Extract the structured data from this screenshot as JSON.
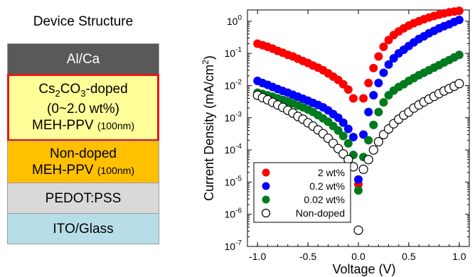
{
  "device_structure": {
    "title": "Device Structure",
    "layers": [
      {
        "text": "Al/Ca",
        "color": "#595959"
      },
      {
        "pre": "Cs",
        "sub": "2",
        "mid": "CO",
        "sub2": "3",
        "post": "-doped",
        "line2": "(0~2.0 wt%)",
        "line3": "MEH-PPV",
        "line3_small": "(100nm)",
        "color": "#ffff99",
        "highlight": "#e5181e"
      },
      {
        "line1": "Non-doped",
        "line2": "MEH-PPV",
        "line2_small": "(100nm)",
        "color": "#ffc000"
      },
      {
        "text": "PEDOT:PSS",
        "color": "#d9d9d9"
      },
      {
        "text": "ITO/Glass",
        "color": "#b7dee8"
      }
    ]
  },
  "chart_data": {
    "type": "scatter",
    "title": "",
    "xlabel": "Voltage (V)",
    "ylabel_main": "Current Density (mA/cm",
    "ylabel_sup": "2",
    "ylabel_end": ")",
    "xlim": [
      -1.1,
      1.1
    ],
    "ylim_exp": [
      -7,
      0.35
    ],
    "yscale": "log",
    "x_ticks": [
      -1.0,
      -0.5,
      0.0,
      0.5,
      1.0
    ],
    "x_tick_labels": [
      "-1.0",
      "-0.5",
      "0.0",
      "0.5",
      "1.0"
    ],
    "y_tick_exponents": [
      -7,
      -6,
      -5,
      -4,
      -3,
      -2,
      -1,
      0
    ],
    "y_tick_base": "10",
    "legend_position": "bottom-left",
    "series": [
      {
        "name": "2 wt%",
        "color": "#ff0000",
        "filled": true,
        "x": [
          -1.0,
          -0.95,
          -0.9,
          -0.85,
          -0.8,
          -0.75,
          -0.7,
          -0.65,
          -0.6,
          -0.55,
          -0.5,
          -0.45,
          -0.4,
          -0.35,
          -0.3,
          -0.25,
          -0.2,
          -0.15,
          -0.1,
          -0.05,
          0.0,
          0.05,
          0.1,
          0.15,
          0.2,
          0.25,
          0.3,
          0.35,
          0.4,
          0.45,
          0.5,
          0.55,
          0.6,
          0.65,
          0.7,
          0.75,
          0.8,
          0.85,
          0.9,
          0.95,
          1.0
        ],
        "y": [
          0.2,
          0.18,
          0.16,
          0.14,
          0.12,
          0.105,
          0.09,
          0.08,
          0.068,
          0.058,
          0.05,
          0.042,
          0.036,
          0.03,
          0.024,
          0.019,
          0.015,
          0.011,
          0.0075,
          0.004,
          8.5e-06,
          0.004,
          0.012,
          0.035,
          0.08,
          0.16,
          0.26,
          0.37,
          0.48,
          0.6,
          0.73,
          0.87,
          1.0,
          1.15,
          1.3,
          1.45,
          1.6,
          1.75,
          1.9,
          2.0,
          2.1
        ]
      },
      {
        "name": "0.2 wt%",
        "color": "#0000ff",
        "filled": true,
        "x": [
          -1.0,
          -0.95,
          -0.9,
          -0.85,
          -0.8,
          -0.75,
          -0.7,
          -0.65,
          -0.6,
          -0.55,
          -0.5,
          -0.45,
          -0.4,
          -0.35,
          -0.3,
          -0.25,
          -0.2,
          -0.15,
          -0.1,
          -0.05,
          0.0,
          0.05,
          0.1,
          0.15,
          0.2,
          0.25,
          0.3,
          0.35,
          0.4,
          0.45,
          0.5,
          0.55,
          0.6,
          0.65,
          0.7,
          0.75,
          0.8,
          0.85,
          0.9,
          0.95,
          1.0
        ],
        "y": [
          0.014,
          0.012,
          0.0105,
          0.009,
          0.0078,
          0.0068,
          0.006,
          0.0052,
          0.0045,
          0.0039,
          0.0034,
          0.0029,
          0.0025,
          0.0021,
          0.0017,
          0.0013,
          0.001,
          0.0007,
          0.00045,
          0.00025,
          1.2e-05,
          0.0003,
          0.0015,
          0.005,
          0.012,
          0.025,
          0.045,
          0.07,
          0.1,
          0.13,
          0.17,
          0.22,
          0.28,
          0.34,
          0.42,
          0.5,
          0.6,
          0.7,
          0.8,
          0.95,
          1.1
        ]
      },
      {
        "name": "0.02 wt%",
        "color": "#007a1f",
        "filled": true,
        "x": [
          -1.0,
          -0.95,
          -0.9,
          -0.85,
          -0.8,
          -0.75,
          -0.7,
          -0.65,
          -0.6,
          -0.55,
          -0.5,
          -0.45,
          -0.4,
          -0.35,
          -0.3,
          -0.25,
          -0.2,
          -0.15,
          -0.1,
          -0.05,
          0.0,
          0.05,
          0.1,
          0.15,
          0.2,
          0.25,
          0.3,
          0.35,
          0.4,
          0.45,
          0.5,
          0.55,
          0.6,
          0.65,
          0.7,
          0.75,
          0.8,
          0.85,
          0.9,
          0.95,
          1.0
        ],
        "y": [
          0.006,
          0.0055,
          0.005,
          0.0045,
          0.004,
          0.0036,
          0.0032,
          0.0028,
          0.0024,
          0.0021,
          0.0018,
          0.0015,
          0.0012,
          0.00095,
          0.00075,
          0.00055,
          0.0004,
          0.00027,
          0.00016,
          7e-05,
          5.5e-06,
          6e-05,
          0.0002,
          0.0006,
          0.0015,
          0.003,
          0.005,
          0.007,
          0.009,
          0.011,
          0.014,
          0.017,
          0.021,
          0.025,
          0.03,
          0.036,
          0.043,
          0.052,
          0.062,
          0.075,
          0.09
        ]
      },
      {
        "name": "Non-doped",
        "color": "#000000",
        "filled": false,
        "x": [
          -1.0,
          -0.95,
          -0.9,
          -0.85,
          -0.8,
          -0.75,
          -0.7,
          -0.65,
          -0.6,
          -0.55,
          -0.5,
          -0.45,
          -0.4,
          -0.35,
          -0.3,
          -0.25,
          -0.2,
          -0.15,
          -0.1,
          -0.05,
          0.0,
          0.05,
          0.1,
          0.15,
          0.2,
          0.25,
          0.3,
          0.35,
          0.4,
          0.45,
          0.5,
          0.55,
          0.6,
          0.65,
          0.7,
          0.75,
          0.8,
          0.85,
          0.9,
          0.95,
          1.0
        ],
        "y": [
          0.005,
          0.0042,
          0.0036,
          0.003,
          0.0025,
          0.0021,
          0.0017,
          0.0014,
          0.0011,
          0.0009,
          0.0007,
          0.00055,
          0.00042,
          0.00032,
          0.00023,
          0.00016,
          0.00011,
          7.5e-05,
          5e-05,
          3e-05,
          3.2e-07,
          2.5e-05,
          5e-05,
          0.0001,
          0.00018,
          0.0003,
          0.00045,
          0.00065,
          0.0009,
          0.0012,
          0.0015,
          0.002,
          0.0025,
          0.0031,
          0.0038,
          0.0046,
          0.0056,
          0.0068,
          0.008,
          0.0095,
          0.0115
        ]
      }
    ]
  }
}
